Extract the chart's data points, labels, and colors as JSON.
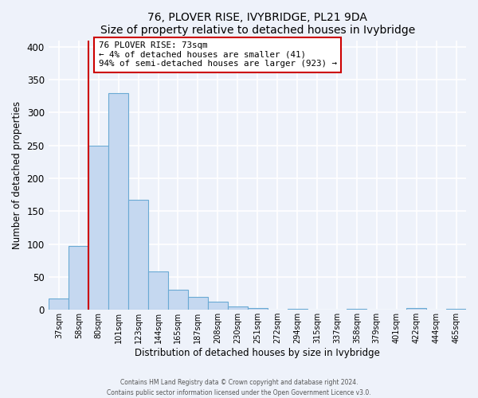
{
  "title": "76, PLOVER RISE, IVYBRIDGE, PL21 9DA",
  "subtitle": "Size of property relative to detached houses in Ivybridge",
  "xlabel": "Distribution of detached houses by size in Ivybridge",
  "ylabel": "Number of detached properties",
  "bar_labels": [
    "37sqm",
    "58sqm",
    "80sqm",
    "101sqm",
    "123sqm",
    "144sqm",
    "165sqm",
    "187sqm",
    "208sqm",
    "230sqm",
    "251sqm",
    "272sqm",
    "294sqm",
    "315sqm",
    "337sqm",
    "358sqm",
    "379sqm",
    "401sqm",
    "422sqm",
    "444sqm",
    "465sqm"
  ],
  "bar_values": [
    17,
    97,
    250,
    330,
    167,
    58,
    30,
    20,
    12,
    5,
    3,
    0,
    2,
    0,
    0,
    1,
    0,
    0,
    3,
    0,
    2
  ],
  "bar_color": "#c5d8f0",
  "bar_edge_color": "#6aaad4",
  "vline_x": 1.5,
  "vline_color": "#cc0000",
  "annotation_title": "76 PLOVER RISE: 73sqm",
  "annotation_line1": "← 4% of detached houses are smaller (41)",
  "annotation_line2": "94% of semi-detached houses are larger (923) →",
  "annotation_box_color": "#ffffff",
  "annotation_box_edge": "#cc0000",
  "ylim": [
    0,
    410
  ],
  "yticks": [
    0,
    50,
    100,
    150,
    200,
    250,
    300,
    350,
    400
  ],
  "footer1": "Contains HM Land Registry data © Crown copyright and database right 2024.",
  "footer2": "Contains public sector information licensed under the Open Government Licence v3.0.",
  "background_color": "#eef2fa",
  "grid_color": "#ffffff"
}
